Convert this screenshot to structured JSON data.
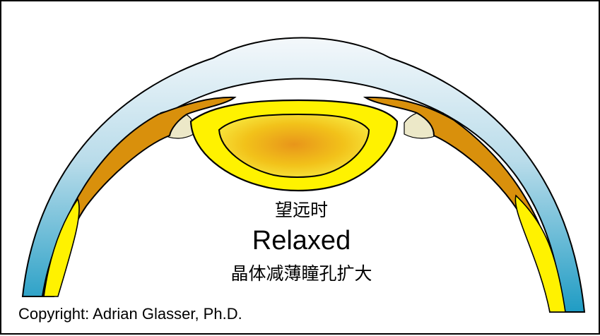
{
  "labels": {
    "top": "望远时",
    "main": "Relaxed",
    "bottom": "晶体减薄瞳孔扩大"
  },
  "copyright": "Copyright: Adrian Glasser, Ph.D.",
  "colors": {
    "sclera_light": "#f2f7fa",
    "sclera_dark": "#1f9cc4",
    "ciliary": "#d9900c",
    "lens_capsule": "#fff200",
    "lens_nucleus_center": "#e8951a",
    "zonules": "#ece8c8",
    "outline": "#000000"
  }
}
